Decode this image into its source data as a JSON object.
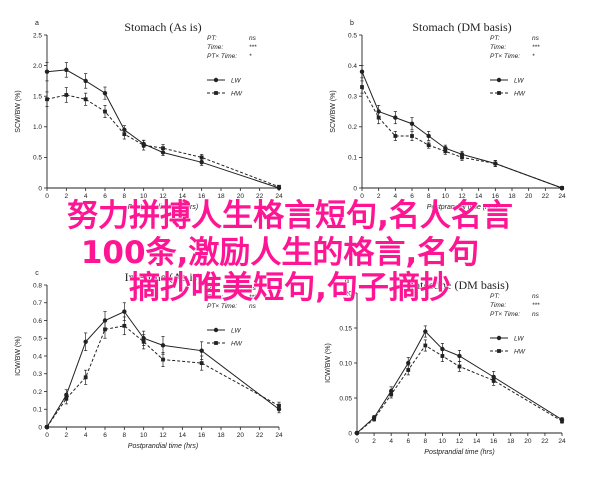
{
  "overlay": {
    "line1": "努力拼搏人生格言短句,名人名言",
    "line2": "100条,激励人生的格言,名句",
    "line3": "摘抄唯美短句,句子摘抄"
  },
  "colors": {
    "series": "#222222",
    "axis": "#222222",
    "overlay": "#ff1493"
  },
  "chart_data": [
    {
      "type": "line",
      "panel": "a",
      "title": "Stomach (As is)",
      "xlabel": "Postprandial time (hrs)",
      "ylabel": "SCW/BW (%)",
      "xlim": [
        0,
        24
      ],
      "ylim": [
        0,
        2.5
      ],
      "xticks": [
        "0",
        "2",
        "4",
        "6",
        "8",
        "10",
        "12",
        "14",
        "16",
        "18",
        "20",
        "22",
        "24"
      ],
      "yticks": [
        "0",
        "0.5",
        "1.0",
        "1.5",
        "2.0",
        "2.5"
      ],
      "x": [
        0,
        2,
        4,
        6,
        8,
        10,
        12,
        16,
        24
      ],
      "series": [
        {
          "name": "LW",
          "values": [
            1.9,
            1.93,
            1.75,
            1.55,
            0.95,
            0.72,
            0.58,
            0.42,
            0.0
          ],
          "err": [
            0.15,
            0.12,
            0.12,
            0.1,
            0.07,
            0.06,
            0.05,
            0.05,
            0.01
          ]
        },
        {
          "name": "HW",
          "values": [
            1.45,
            1.52,
            1.45,
            1.25,
            0.88,
            0.7,
            0.65,
            0.5,
            0.02
          ],
          "err": [
            0.12,
            0.12,
            0.1,
            0.1,
            0.08,
            0.08,
            0.06,
            0.05,
            0.01
          ]
        }
      ],
      "stats": [
        {
          "label": "PT:",
          "value": "ns"
        },
        {
          "label": "Time:",
          "value": "***"
        },
        {
          "label": "PT× Time:",
          "value": "*"
        }
      ]
    },
    {
      "type": "line",
      "panel": "b",
      "title": "Stomach (DM basis)",
      "xlabel": "Postprandial time (hrs)",
      "ylabel": "SCW/BW (%)",
      "xlim": [
        0,
        24
      ],
      "ylim": [
        0,
        0.5
      ],
      "xticks": [
        "0",
        "2",
        "4",
        "6",
        "8",
        "10",
        "12",
        "14",
        "16",
        "18",
        "20",
        "22",
        "24"
      ],
      "yticks": [
        "0",
        "0.1",
        "0.2",
        "0.3",
        "0.4",
        "0.5"
      ],
      "x": [
        0,
        2,
        4,
        6,
        8,
        10,
        12,
        16,
        24
      ],
      "series": [
        {
          "name": "LW",
          "values": [
            0.38,
            0.25,
            0.23,
            0.21,
            0.17,
            0.13,
            0.11,
            0.08,
            0.0
          ],
          "err": [
            0.02,
            0.02,
            0.02,
            0.02,
            0.015,
            0.01,
            0.01,
            0.01,
            0.005
          ]
        },
        {
          "name": "HW",
          "values": [
            0.33,
            0.23,
            0.17,
            0.17,
            0.14,
            0.12,
            0.1,
            0.08,
            0.0
          ],
          "err": [
            0.02,
            0.02,
            0.015,
            0.015,
            0.01,
            0.01,
            0.01,
            0.01,
            0.005
          ]
        }
      ],
      "stats": [
        {
          "label": "PT:",
          "value": "ns"
        },
        {
          "label": "Time:",
          "value": "***"
        },
        {
          "label": "PT× Time:",
          "value": "*"
        }
      ]
    },
    {
      "type": "line",
      "panel": "c",
      "title": "Intestine (As is)",
      "xlabel": "Postprandial time (hrs)",
      "ylabel": "ICW/BW (%)",
      "xlim": [
        0,
        24
      ],
      "ylim": [
        0,
        0.8
      ],
      "xticks": [
        "0",
        "2",
        "4",
        "6",
        "8",
        "10",
        "12",
        "14",
        "16",
        "18",
        "20",
        "22",
        "24"
      ],
      "yticks": [
        "0",
        "0.1",
        "0.2",
        "0.3",
        "0.4",
        "0.5",
        "0.6",
        "0.7",
        "0.8"
      ],
      "x": [
        0,
        2,
        4,
        6,
        8,
        10,
        12,
        16,
        24
      ],
      "series": [
        {
          "name": "LW",
          "values": [
            0.0,
            0.18,
            0.48,
            0.6,
            0.65,
            0.5,
            0.46,
            0.43,
            0.1
          ],
          "err": [
            0.005,
            0.03,
            0.05,
            0.05,
            0.05,
            0.04,
            0.05,
            0.05,
            0.02
          ]
        },
        {
          "name": "HW",
          "values": [
            0.0,
            0.16,
            0.28,
            0.55,
            0.57,
            0.48,
            0.38,
            0.36,
            0.12
          ],
          "err": [
            0.005,
            0.03,
            0.04,
            0.05,
            0.05,
            0.04,
            0.04,
            0.04,
            0.02
          ]
        }
      ],
      "stats": [
        {
          "label": "PT:",
          "value": "ns"
        },
        {
          "label": "Time:",
          "value": "***"
        },
        {
          "label": "PT× Time:",
          "value": "ns"
        }
      ]
    },
    {
      "type": "line",
      "panel": "d",
      "title": "Intestine (DM basis)",
      "xlabel": "Postprandial time (hrs)",
      "ylabel": "ICW/BW (%)",
      "xlim": [
        0,
        24
      ],
      "ylim": [
        0,
        0.2
      ],
      "xticks": [
        "0",
        "2",
        "4",
        "6",
        "8",
        "10",
        "12",
        "14",
        "16",
        "18",
        "20",
        "22",
        "24"
      ],
      "yticks": [
        "0",
        "0.05",
        "0.10",
        "0.15",
        "0.20"
      ],
      "x": [
        0,
        2,
        4,
        6,
        8,
        10,
        12,
        16,
        24
      ],
      "series": [
        {
          "name": "LW",
          "values": [
            0.0,
            0.022,
            0.06,
            0.1,
            0.145,
            0.12,
            0.11,
            0.08,
            0.019
          ],
          "err": [
            0.001,
            0.003,
            0.006,
            0.008,
            0.008,
            0.008,
            0.008,
            0.008,
            0.003
          ]
        },
        {
          "name": "HW",
          "values": [
            0.0,
            0.02,
            0.055,
            0.09,
            0.125,
            0.11,
            0.095,
            0.075,
            0.017
          ],
          "err": [
            0.001,
            0.003,
            0.005,
            0.007,
            0.008,
            0.008,
            0.007,
            0.007,
            0.003
          ]
        }
      ],
      "stats": [
        {
          "label": "PT:",
          "value": "ns"
        },
        {
          "label": "Time:",
          "value": "***"
        },
        {
          "label": "PT× Time:",
          "value": "ns"
        }
      ]
    }
  ]
}
